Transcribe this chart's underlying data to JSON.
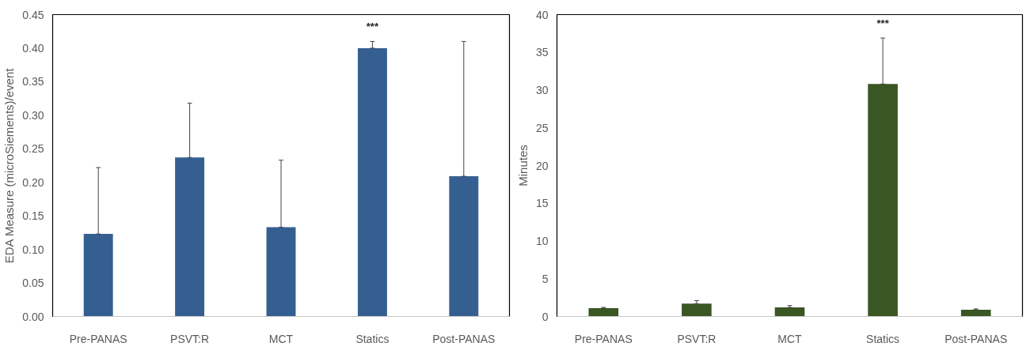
{
  "chart_data": [
    {
      "type": "bar",
      "categories": [
        "Pre-PANAS",
        "PSVT:R",
        "MCT",
        "Statics",
        "Post-PANAS"
      ],
      "values": [
        0.123,
        0.237,
        0.133,
        0.4,
        0.209
      ],
      "color": "#365f91",
      "errors": [
        [
          0.123,
          0.222
        ],
        [
          0.237,
          0.318
        ],
        [
          0.133,
          0.233
        ],
        [
          0.4,
          0.41
        ],
        [
          0.209,
          0.41
        ]
      ],
      "ylabel": "EDA Measure (microSiements)/event",
      "ylim": [
        0,
        0.45
      ],
      "yticks": [
        {
          "value": 0,
          "label": "0.00"
        },
        {
          "value": 0.05,
          "label": "0.05"
        },
        {
          "value": 0.1,
          "label": "0.10"
        },
        {
          "value": 0.15,
          "label": "0.15"
        },
        {
          "value": 0.2,
          "label": "0.20"
        },
        {
          "value": 0.25,
          "label": "0.25"
        },
        {
          "value": 0.3,
          "label": "0.30"
        },
        {
          "value": 0.35,
          "label": "0.35"
        },
        {
          "value": 0.4,
          "label": "0.40"
        },
        {
          "value": 0.45,
          "label": "0.45"
        }
      ],
      "annotations": [
        "***"
      ]
    },
    {
      "type": "bar",
      "categories": [
        "Pre-PANAS",
        "PSVT:R",
        "MCT",
        "Statics",
        "Post-PANAS"
      ],
      "values": [
        1.1,
        1.7,
        1.2,
        30.8,
        0.9
      ],
      "color": "#3a5623",
      "errors": [
        [
          1.1,
          1.2
        ],
        [
          1.7,
          2.1
        ],
        [
          1.2,
          1.45
        ],
        [
          30.8,
          36.9
        ],
        [
          0.9,
          1.0
        ]
      ],
      "ylabel": "Minutes",
      "ylim": [
        0,
        40
      ],
      "yticks": [
        0,
        5,
        10,
        15,
        20,
        25,
        30,
        35,
        40
      ],
      "annotations": [
        "***"
      ]
    }
  ]
}
